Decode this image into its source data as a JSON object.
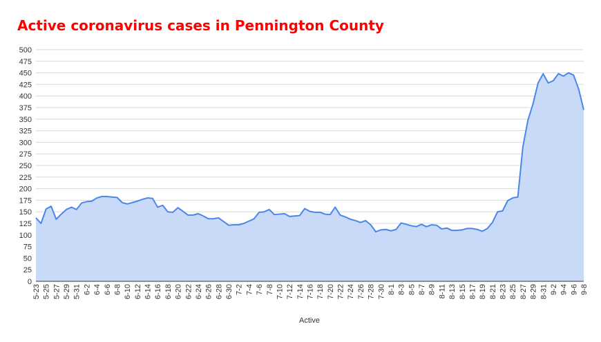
{
  "chart_data": {
    "type": "area",
    "title": "Active coronavirus cases in Pennington County",
    "x_label": "Active",
    "categories": [
      "5-23",
      null,
      "5-25",
      null,
      "5-27",
      null,
      "5-29",
      null,
      "5-31",
      null,
      "6-2",
      null,
      "6-4",
      null,
      "6-6",
      null,
      "6-8",
      null,
      "6-10",
      null,
      "6-12",
      null,
      "6-14",
      null,
      "6-16",
      null,
      "6-18",
      null,
      "6-20",
      null,
      "6-22",
      null,
      "6-24",
      null,
      "6-26",
      null,
      "6-28",
      null,
      "6-30",
      null,
      "7-2",
      null,
      "7-4",
      null,
      "7-6",
      null,
      "7-8",
      null,
      "7-10",
      null,
      "7-12",
      null,
      "7-14",
      null,
      "7-16",
      null,
      "7-18",
      null,
      "7-20",
      null,
      "7-22",
      null,
      "7-24",
      null,
      "7-26",
      null,
      "7-28",
      null,
      "7-30",
      null,
      "8-1",
      null,
      "8-3",
      null,
      "8-5",
      null,
      "8-7",
      null,
      "8-9",
      null,
      "8-11",
      null,
      "8-13",
      null,
      "8-15",
      null,
      "8-17",
      null,
      "8-19",
      null,
      "8-21",
      null,
      "8-23",
      null,
      "8-25",
      null,
      "8-27",
      null,
      "8-29",
      null,
      "8-31",
      null,
      "9-2",
      null,
      "9-4",
      null,
      "9-6",
      null,
      "9-8"
    ],
    "values": [
      137,
      125,
      156,
      162,
      134,
      145,
      155,
      160,
      155,
      169,
      172,
      173,
      180,
      183,
      183,
      182,
      181,
      170,
      167,
      170,
      173,
      177,
      180,
      179,
      160,
      164,
      150,
      149,
      159,
      151,
      143,
      143,
      146,
      141,
      135,
      135,
      137,
      129,
      121,
      122,
      122,
      125,
      130,
      135,
      149,
      150,
      155,
      144,
      145,
      146,
      140,
      141,
      142,
      157,
      151,
      149,
      149,
      145,
      144,
      160,
      143,
      139,
      134,
      131,
      127,
      131,
      122,
      107,
      111,
      112,
      109,
      112,
      126,
      123,
      120,
      118,
      123,
      118,
      122,
      121,
      113,
      115,
      110,
      110,
      111,
      114,
      114,
      112,
      108,
      114,
      127,
      150,
      152,
      174,
      180,
      182,
      290,
      348,
      383,
      428,
      448,
      428,
      433,
      448,
      443,
      450,
      445,
      415,
      370
    ],
    "color": "#4a86e8",
    "fill_color": "#c9daf8",
    "ylim": [
      0,
      500
    ],
    "yticks": [
      0,
      25,
      50,
      75,
      100,
      125,
      150,
      175,
      200,
      225,
      250,
      275,
      300,
      325,
      350,
      375,
      400,
      425,
      450,
      475,
      500
    ],
    "grid": true
  }
}
